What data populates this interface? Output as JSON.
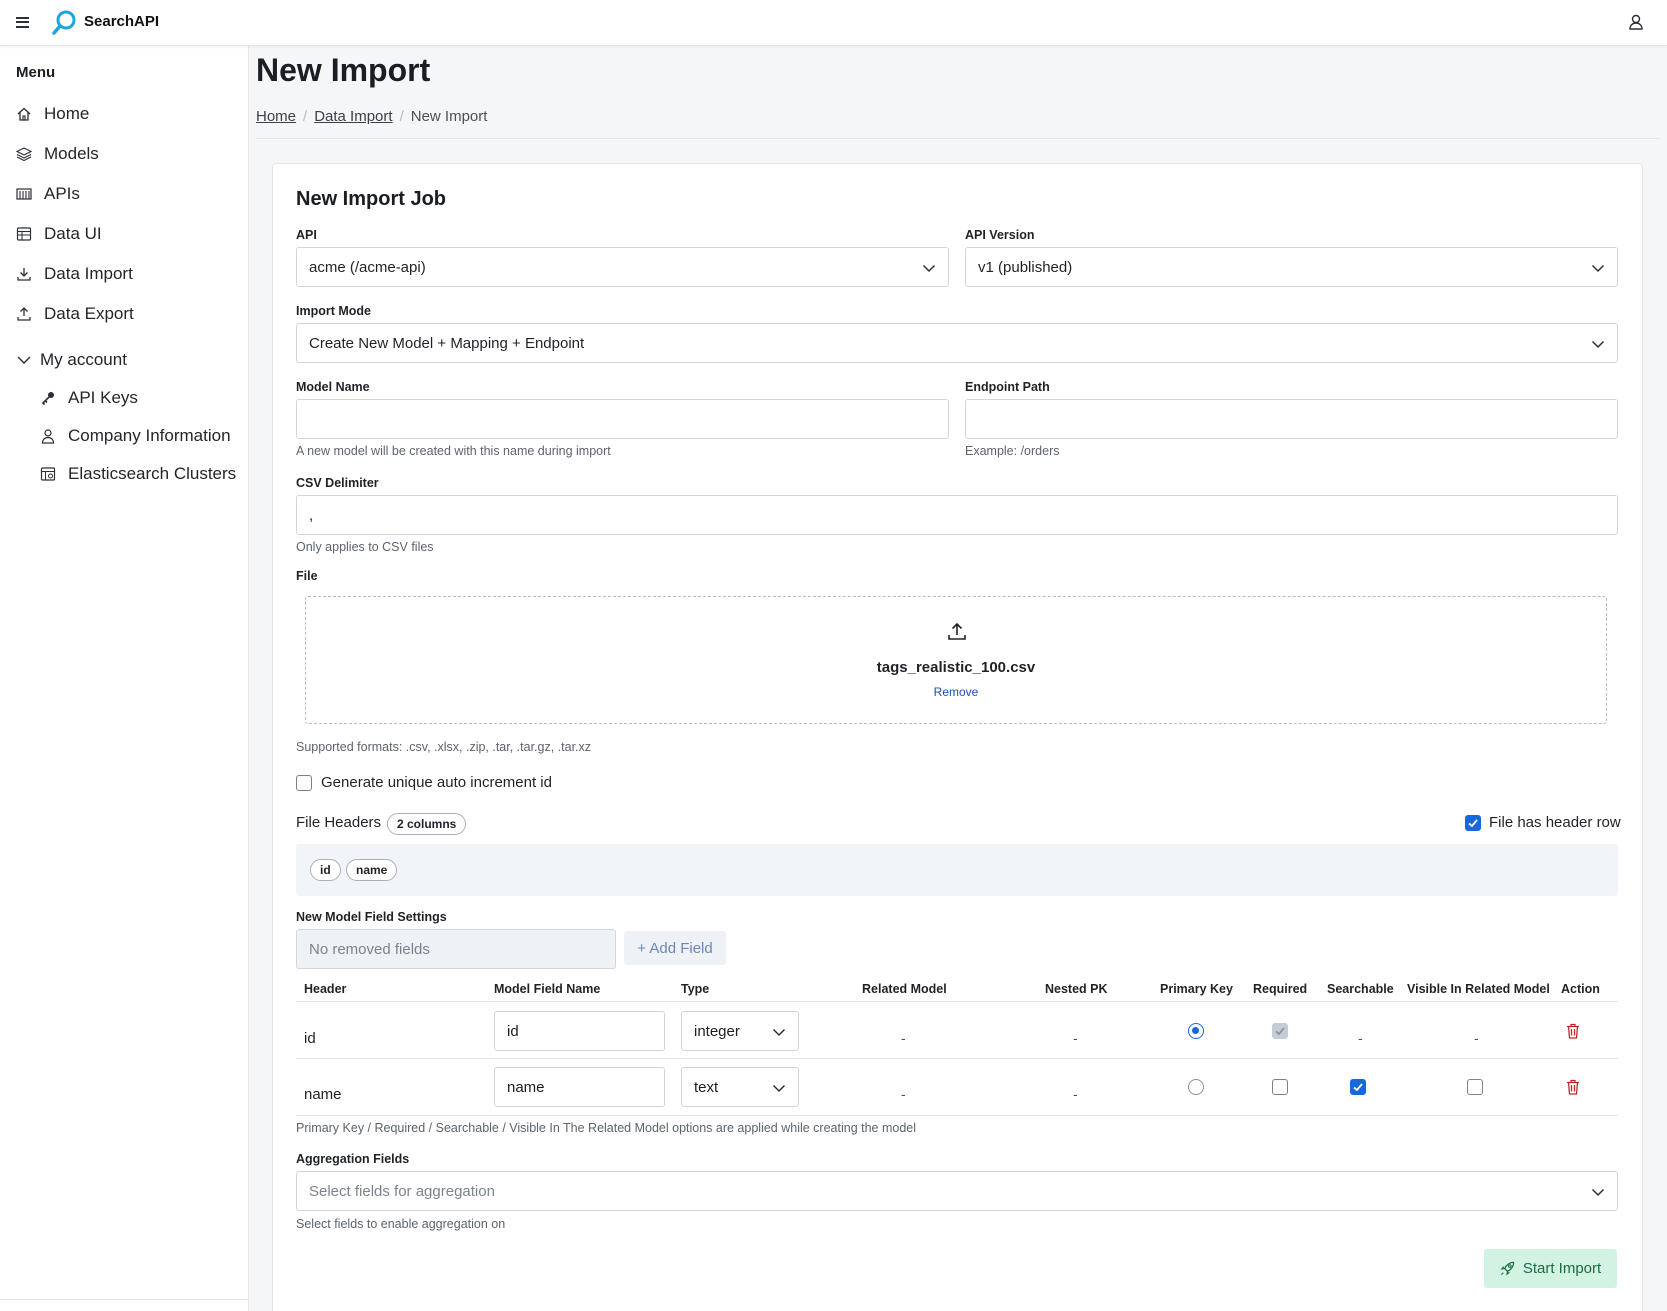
{
  "app": {
    "name": "SearchAPI"
  },
  "sidebar": {
    "heading": "Menu",
    "items": [
      {
        "label": "Home",
        "icon": "home-icon"
      },
      {
        "label": "Models",
        "icon": "layers-icon"
      },
      {
        "label": "APIs",
        "icon": "api-icon"
      },
      {
        "label": "Data UI",
        "icon": "table-icon"
      },
      {
        "label": "Data Import",
        "icon": "download-icon"
      },
      {
        "label": "Data Export",
        "icon": "upload-icon"
      }
    ],
    "account": {
      "label": "My account",
      "items": [
        {
          "label": "API Keys",
          "icon": "key-icon"
        },
        {
          "label": "Company Information",
          "icon": "user-icon"
        },
        {
          "label": "Elasticsearch Clusters",
          "icon": "cluster-icon"
        }
      ]
    }
  },
  "page": {
    "title": "New Import",
    "breadcrumb": [
      "Home",
      "Data Import",
      "New Import"
    ]
  },
  "form": {
    "title": "New Import Job",
    "api": {
      "label": "API",
      "value": "acme (/acme-api)"
    },
    "api_version": {
      "label": "API Version",
      "value": "v1 (published)"
    },
    "import_mode": {
      "label": "Import Mode",
      "value": "Create New Model + Mapping + Endpoint"
    },
    "model_name": {
      "label": "Model Name",
      "value": "",
      "help": "A new model will be created with this name during import"
    },
    "endpoint_path": {
      "label": "Endpoint Path",
      "value": "",
      "help": "Example: /orders"
    },
    "csv_delimiter": {
      "label": "CSV Delimiter",
      "value": ",",
      "help": "Only applies to CSV files"
    },
    "file": {
      "label": "File",
      "name": "tags_realistic_100.csv",
      "remove_label": "Remove",
      "help": "Supported formats: .csv, .xlsx, .zip, .tar, .tar.gz, .tar.xz"
    },
    "auto_increment": {
      "label": "Generate unique auto increment id",
      "checked": false
    },
    "file_headers": {
      "label": "File Headers",
      "count_badge": "2 columns",
      "has_header_row_label": "File has header row",
      "has_header_row": true,
      "columns": [
        "id",
        "name"
      ]
    },
    "field_settings": {
      "label": "New Model Field Settings",
      "removed_placeholder": "No removed fields",
      "add_field_label": "+ Add Field",
      "columns": [
        "Header",
        "Model Field Name",
        "Type",
        "Related Model",
        "Nested PK",
        "Primary Key",
        "Required",
        "Searchable",
        "Visible In Related Model",
        "Action"
      ],
      "rows": [
        {
          "header": "id",
          "field_name": "id",
          "type": "integer",
          "related_model": "-",
          "nested_pk": "-",
          "primary_key": true,
          "required": true,
          "searchable": "-",
          "visible_related": "-"
        },
        {
          "header": "name",
          "field_name": "name",
          "type": "text",
          "related_model": "-",
          "nested_pk": "-",
          "primary_key": false,
          "required": false,
          "searchable": true,
          "visible_related": false
        }
      ],
      "help": "Primary Key / Required / Searchable / Visible In The Related Model options are applied while creating the model"
    },
    "aggregation": {
      "label": "Aggregation Fields",
      "placeholder": "Select fields for aggregation",
      "help": "Select fields to enable aggregation on"
    },
    "start_label": "Start Import"
  },
  "colors": {
    "accent": "#1668dc",
    "start_bg": "#d3f3e2",
    "start_text": "#1d6b45",
    "danger": "#c0262d",
    "logo": "#1aa7e0"
  }
}
